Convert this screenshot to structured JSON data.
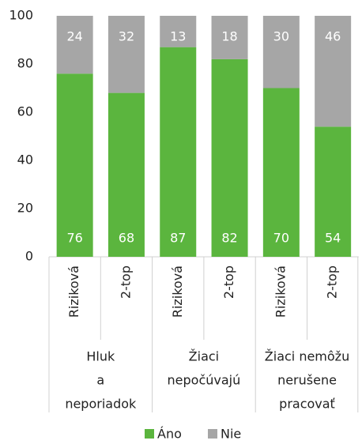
{
  "chart_data": {
    "type": "stacked_bar",
    "groups": [
      {
        "label": [
          "Hluk",
          "a",
          "neporiadok"
        ],
        "categories": [
          "Riziková",
          "2-top"
        ]
      },
      {
        "label": [
          "Žiaci",
          "nepočúvajú"
        ],
        "categories": [
          "Riziková",
          "2-top"
        ]
      },
      {
        "label": [
          "Žiaci nemôžu",
          "nerušene",
          "pracovať"
        ],
        "categories": [
          "Riziková",
          "2-top"
        ]
      }
    ],
    "series": [
      {
        "name": "Áno",
        "color": "#5bb53e",
        "values": [
          76,
          68,
          87,
          82,
          70,
          54
        ]
      },
      {
        "name": "Nie",
        "color": "#a6a6a6",
        "values": [
          24,
          32,
          13,
          18,
          30,
          46
        ]
      }
    ],
    "ylim": [
      0,
      100
    ],
    "yticks": [
      0,
      20,
      40,
      60,
      80,
      100
    ],
    "grid": false,
    "legend": "bottom"
  }
}
